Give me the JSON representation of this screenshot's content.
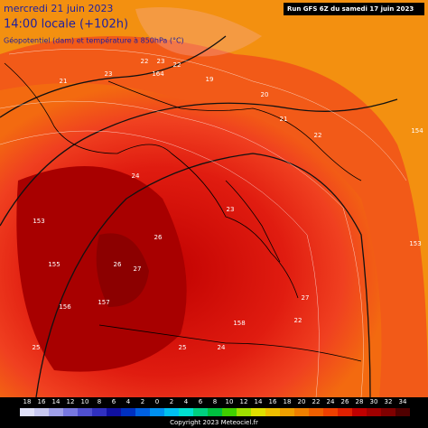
{
  "header": {
    "date": "mercredi 21 juin 2023",
    "time": "14:00 locale (+102h)",
    "field": "Géopotentiel (dam) et température à 850hPa (°C)",
    "run": "Run GFS 6Z du samedi 17 juin 2023"
  },
  "map_labels": [
    "21",
    "23",
    "22",
    "23",
    "22",
    "164",
    "19",
    "20",
    "21",
    "22",
    "153",
    "155",
    "156",
    "157",
    "26",
    "27",
    "24",
    "26",
    "23",
    "158",
    "25",
    "24",
    "154",
    "153",
    "22",
    "27",
    "25"
  ],
  "scale": {
    "labels": [
      "18",
      "16",
      "14",
      "12",
      "10",
      "8",
      "6",
      "4",
      "2",
      "0",
      "2",
      "4",
      "6",
      "8",
      "10",
      "12",
      "14",
      "16",
      "18",
      "20",
      "22",
      "24",
      "26",
      "28",
      "30",
      "32",
      "34"
    ]
  },
  "footer": {
    "copyright": "Copyright 2023 Meteociel.fr"
  }
}
